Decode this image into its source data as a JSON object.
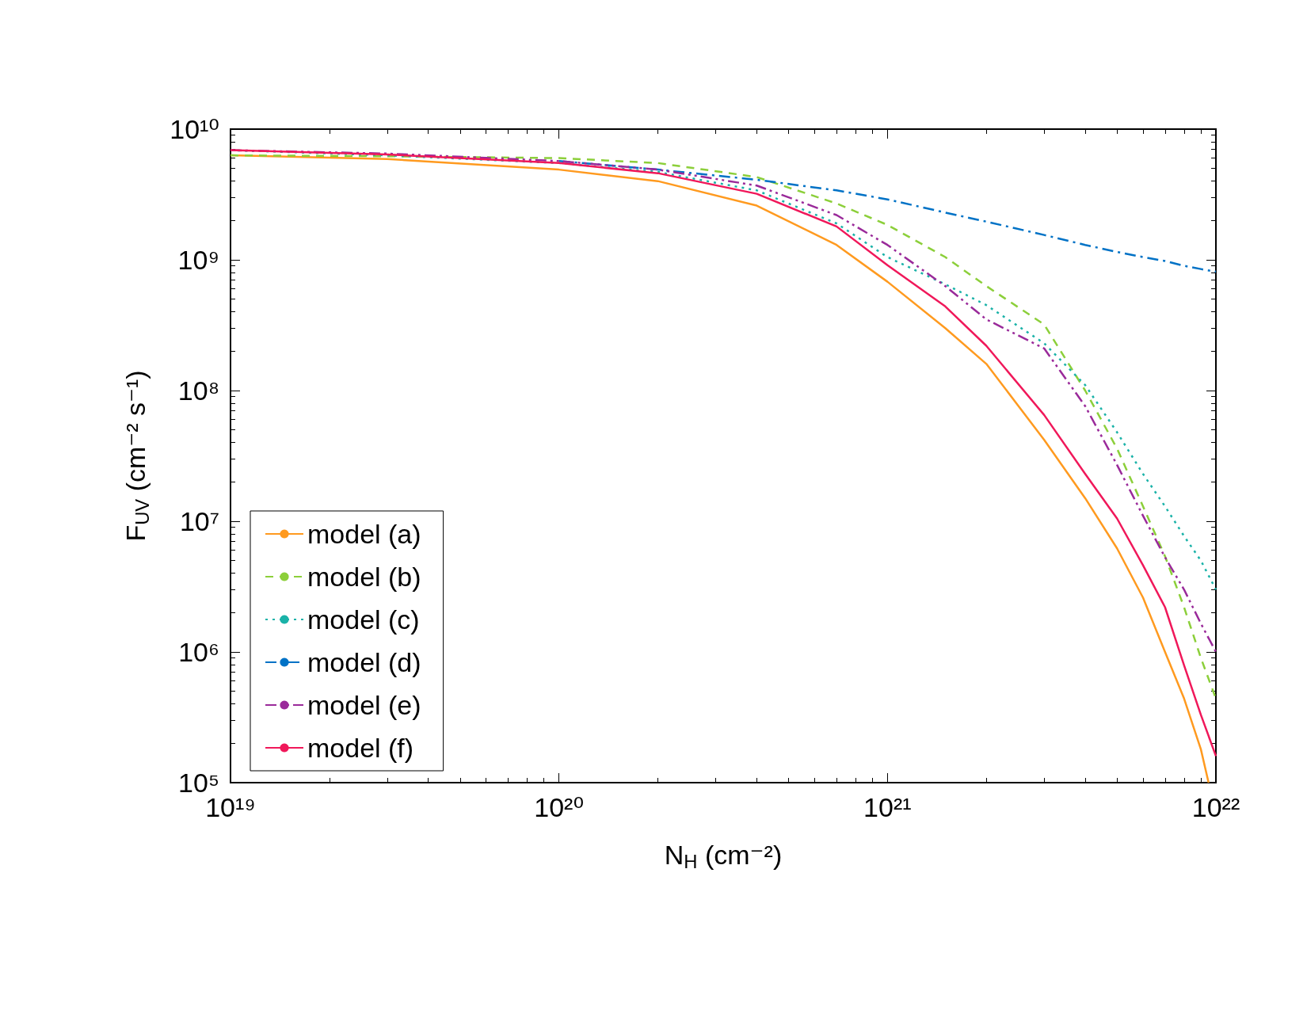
{
  "chart_data": {
    "type": "line",
    "xlabel": "N$_{H}$ (cm⁻²)",
    "ylabel": "F$_{UV}$ (cm⁻² s⁻¹)",
    "log": "xy",
    "grid": false,
    "legend": "bottom left",
    "marker": "none",
    "xlim": [
      1e+19,
      1e+22
    ],
    "xticks": [
      {
        "value": 1e+19,
        "label": "10¹⁹"
      },
      {
        "value": 1e+20,
        "label": "10²⁰"
      },
      {
        "value": 1e+21,
        "label": "10²¹"
      },
      {
        "value": 1e+22,
        "label": "10²²"
      }
    ],
    "ylim": [
      100000.0,
      10000000000.0
    ],
    "yticks": [
      {
        "value": 100000.0,
        "label": "10⁵"
      },
      {
        "value": 1000000.0,
        "label": "10⁶"
      },
      {
        "value": 10000000.0,
        "label": "10⁷"
      },
      {
        "value": 100000000.0,
        "label": "10⁸"
      },
      {
        "value": 1000000000.0,
        "label": "10⁹"
      },
      {
        "value": 10000000000.0,
        "label": "10¹⁰"
      }
    ],
    "x": [
      1e+19,
      3e+19,
      1e+20,
      2e+20,
      4e+20,
      7e+20,
      1e+21,
      1.5e+21,
      2e+21,
      3e+21,
      4e+21,
      5e+21,
      6e+21,
      7e+21,
      8e+21,
      9e+21,
      1e+22
    ],
    "series": [
      {
        "name": "model (a)",
        "color": "#ff9a1f",
        "line_style": "solid",
        "x": [
          1e+19,
          3e+19,
          1e+20,
          2e+20,
          4e+20,
          7e+20,
          1e+21,
          1.5e+21,
          2e+21,
          3e+21,
          4e+21,
          5e+21,
          6e+21,
          7e+21,
          8e+21,
          9e+21,
          9.5e+21
        ],
        "values": [
          6300000000.0,
          5900000000.0,
          4900000000.0,
          4000000000.0,
          2600000000.0,
          1300000000.0,
          680000000.0,
          300000000.0,
          160000000.0,
          42000000.0,
          15000000.0,
          6200000.0,
          2600000.0,
          1000000.0,
          440000.0,
          180000.0,
          100000.0
        ]
      },
      {
        "name": "model (b)",
        "color": "#8ccf3a",
        "line_style": "dashed",
        "values": [
          6300000000.0,
          6200000000.0,
          6000000000.0,
          5500000000.0,
          4300000000.0,
          2700000000.0,
          1850000000.0,
          1050000000.0,
          630000000.0,
          320000000.0,
          100000000.0,
          36000000.0,
          13000000.0,
          5400000.0,
          2200000.0,
          900000.0,
          440000.0
        ]
      },
      {
        "name": "model (c)",
        "color": "#1ab2a8",
        "line_style": "dotted",
        "values": [
          6900000000.0,
          6300000000.0,
          5500000000.0,
          4700000000.0,
          3400000000.0,
          1900000000.0,
          1050000000.0,
          650000000.0,
          450000000.0,
          230000000.0,
          110000000.0,
          48000000.0,
          23000000.0,
          13000000.0,
          7700000.0,
          5000000.0,
          3000000.0
        ]
      },
      {
        "name": "model (d)",
        "color": "#0072c6",
        "line_style": "dashdot",
        "values": [
          null,
          null,
          5700000000.0,
          4900000000.0,
          4100000000.0,
          3400000000.0,
          2900000000.0,
          2300000000.0,
          1960000000.0,
          1550000000.0,
          1300000000.0,
          1150000000.0,
          1050000000.0,
          980000000.0,
          900000000.0,
          850000000.0,
          810000000.0
        ]
      },
      {
        "name": "model (e)",
        "color": "#9a2a9a",
        "line_style": "dashdotdot",
        "values": [
          6900000000.0,
          6500000000.0,
          5700000000.0,
          4900000000.0,
          3700000000.0,
          2200000000.0,
          1300000000.0,
          630000000.0,
          350000000.0,
          210000000.0,
          76000000.0,
          27000000.0,
          11000000.0,
          5300000.0,
          3000000.0,
          1650000.0,
          1000000.0
        ]
      },
      {
        "name": "model (f)",
        "color": "#f0185a",
        "line_style": "solid",
        "values": [
          6900000000.0,
          6400000000.0,
          5500000000.0,
          4600000000.0,
          3200000000.0,
          1800000000.0,
          910000000.0,
          440000000.0,
          220000000.0,
          65000000.0,
          23000000.0,
          10500000.0,
          4600000.0,
          2200000.0,
          790000.0,
          330000.0,
          160000.0
        ]
      }
    ]
  }
}
